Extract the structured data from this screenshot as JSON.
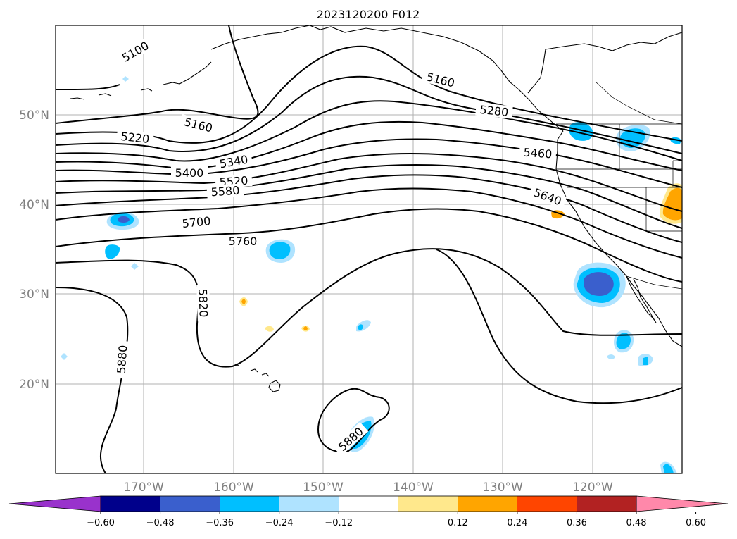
{
  "title": "2023120200 F012",
  "axes": {
    "lat_labels": [
      "50°N",
      "40°N",
      "30°N",
      "20°N"
    ],
    "lon_labels": [
      "170°W",
      "160°W",
      "150°W",
      "140°W",
      "130°W",
      "120°W"
    ]
  },
  "contours": {
    "unit_note": "",
    "labels": [
      "5100",
      "5160",
      "5160",
      "5220",
      "5280",
      "5340",
      "5400",
      "5460",
      "5520",
      "5580",
      "5640",
      "5700",
      "5760",
      "5820",
      "5880",
      "5880"
    ]
  },
  "colorbar": {
    "tick_labels": [
      "−0.60",
      "−0.48",
      "−0.36",
      "−0.24",
      "−0.12",
      "0.12",
      "0.24",
      "0.36",
      "0.48",
      "0.60"
    ],
    "colors": [
      "#9932cc",
      "#00008b",
      "#3a5fcd",
      "#00bfff",
      "#afe3ff",
      "#ffffff",
      "#ffe88c",
      "#ffa500",
      "#ff4500",
      "#b22222",
      "#ff88aa"
    ]
  }
}
